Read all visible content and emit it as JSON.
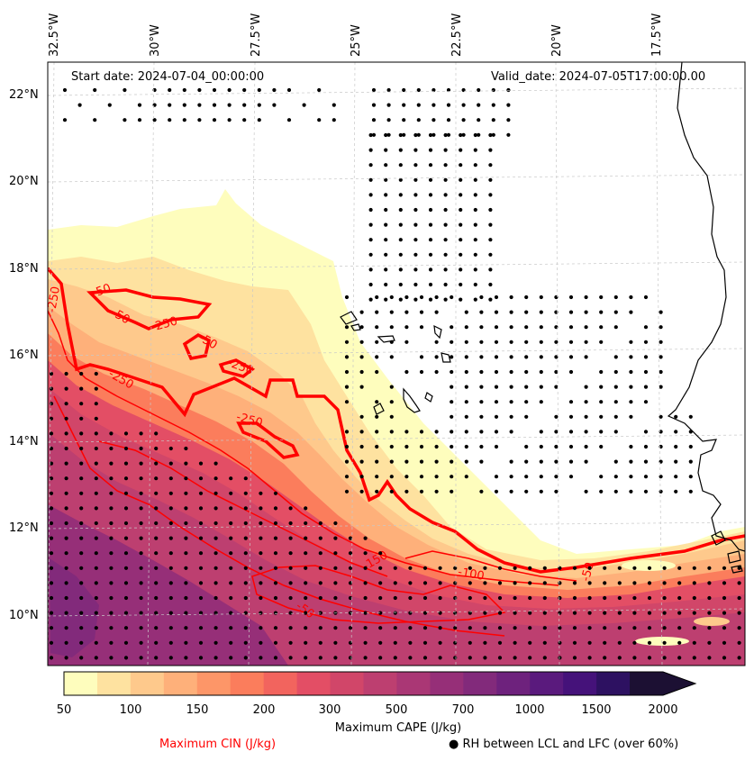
{
  "header": {
    "start_date": "Start date: 2024-07-04_00:00:00",
    "valid_date": "Valid_date: 2024-07-05T17:00:00.00"
  },
  "axes": {
    "longitude_labels": [
      "32.5°W",
      "30°W",
      "27.5°W",
      "25°W",
      "22.5°W",
      "20°W",
      "17.5°W"
    ],
    "latitude_labels": [
      "22°N",
      "20°N",
      "18°N",
      "16°N",
      "14°N",
      "12°N",
      "10°N"
    ]
  },
  "colorbar": {
    "title": "Maximum CAPE (J/kg)",
    "tick_labels": [
      "50",
      "100",
      "150",
      "200",
      "300",
      "500",
      "700",
      "1000",
      "1500",
      "2000"
    ],
    "colors": [
      "#fefdbd",
      "#fee2a0",
      "#fec98c",
      "#feb07a",
      "#fd9668",
      "#fb7d5c",
      "#f2645e",
      "#e34e65",
      "#d14669",
      "#bd3f70",
      "#aa3775",
      "#962f78",
      "#822a7b",
      "#6e227d",
      "#5a1a7d",
      "#45127a",
      "#2d1161",
      "#1c1033"
    ]
  },
  "legend": {
    "cin_label": "Maximum CIN (J/kg)",
    "rh_label": "● RH between LCL and LFC (over 60%)"
  },
  "contour_labels": [
    "-250",
    "-50",
    "-250",
    "-50",
    "-250",
    "-250",
    "-250",
    "-50",
    "-150",
    "-100",
    "-50",
    "-50"
  ]
}
